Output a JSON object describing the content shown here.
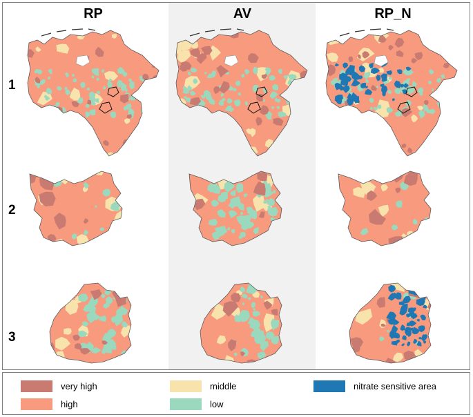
{
  "columns": [
    "RP",
    "AV",
    "RP_N"
  ],
  "rows": [
    "1",
    "2",
    "3"
  ],
  "legend": [
    {
      "label": "very high",
      "color": "#c97b72"
    },
    {
      "label": "middle",
      "color": "#f9e3ad"
    },
    {
      "label": "nitrate sensitive area",
      "color": "#1f78b4"
    },
    {
      "label": "high",
      "color": "#f79a7e"
    },
    {
      "label": "low",
      "color": "#9bd9bf"
    }
  ],
  "colors": {
    "very_high": "#c97b72",
    "high": "#f79a7e",
    "middle": "#f9e3ad",
    "low": "#9bd9bf",
    "nitrate": "#1f78b4",
    "highlight_band": "#f1f1f1"
  },
  "maps": [
    {
      "row": "1",
      "column": "RP",
      "low_share": "medium",
      "nitrate_overlay": false
    },
    {
      "row": "1",
      "column": "AV",
      "low_share": "medium",
      "nitrate_overlay": false
    },
    {
      "row": "1",
      "column": "RP_N",
      "low_share": "medium",
      "nitrate_overlay": true
    },
    {
      "row": "2",
      "column": "RP",
      "low_share": "small",
      "nitrate_overlay": false
    },
    {
      "row": "2",
      "column": "AV",
      "low_share": "large",
      "nitrate_overlay": false
    },
    {
      "row": "2",
      "column": "RP_N",
      "low_share": "small",
      "nitrate_overlay": false
    },
    {
      "row": "3",
      "column": "RP",
      "low_share": "medium",
      "nitrate_overlay": false
    },
    {
      "row": "3",
      "column": "AV",
      "low_share": "medium",
      "nitrate_overlay": false
    },
    {
      "row": "3",
      "column": "RP_N",
      "low_share": "small",
      "nitrate_overlay": true
    }
  ]
}
